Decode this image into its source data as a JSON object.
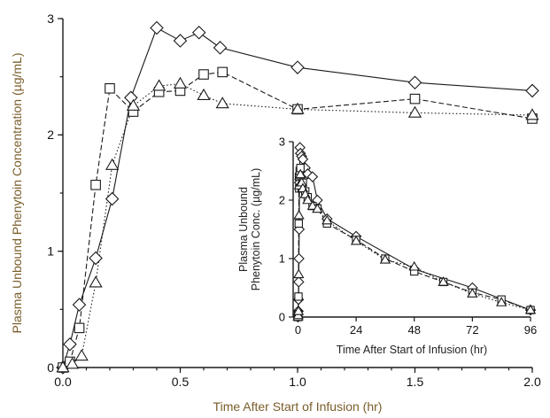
{
  "chart_data": [
    {
      "type": "line",
      "title": "",
      "xlabel": "Time After Start of Infusion (hr)",
      "ylabel": "Plasma Unbound Phenytoin Concentration (µg/mL)",
      "xlim": [
        0,
        2.0
      ],
      "ylim": [
        0,
        3
      ],
      "xticks": [
        "0.0",
        "0.5",
        "1.0",
        "1.5",
        "2.0"
      ],
      "yticks": [
        "0",
        "1",
        "2",
        "3"
      ],
      "grid": false,
      "series": [
        {
          "marker": "diamond",
          "dash": "solid",
          "x": [
            0.0,
            0.03,
            0.07,
            0.14,
            0.21,
            0.29,
            0.4,
            0.5,
            0.58,
            0.67,
            1.0,
            1.5,
            2.0
          ],
          "y": [
            0.0,
            0.2,
            0.54,
            0.94,
            1.45,
            2.32,
            2.92,
            2.81,
            2.88,
            2.75,
            2.58,
            2.45,
            2.38
          ]
        },
        {
          "marker": "square",
          "dash": "dashed",
          "x": [
            0.0,
            0.03,
            0.07,
            0.14,
            0.2,
            0.3,
            0.41,
            0.5,
            0.6,
            0.68,
            1.0,
            1.5,
            2.0
          ],
          "y": [
            0.0,
            0.05,
            0.34,
            1.57,
            2.4,
            2.2,
            2.37,
            2.38,
            2.52,
            2.54,
            2.22,
            2.31,
            2.14
          ]
        },
        {
          "marker": "triangle",
          "dash": "dotted",
          "x": [
            0.0,
            0.04,
            0.08,
            0.14,
            0.21,
            0.3,
            0.41,
            0.5,
            0.6,
            0.68,
            1.0,
            1.5,
            2.0
          ],
          "y": [
            0.0,
            0.03,
            0.1,
            0.73,
            1.74,
            2.25,
            2.42,
            2.44,
            2.34,
            2.27,
            2.22,
            2.19,
            2.17
          ]
        }
      ]
    },
    {
      "type": "line",
      "title": "",
      "xlabel": "Time After Start of Infusion (hr)",
      "ylabel": [
        "Plasma Unbound",
        "Phenytoin Conc. (µg/mL)"
      ],
      "xlim": [
        -2,
        96
      ],
      "ylim": [
        0,
        3
      ],
      "xticks": [
        "0",
        "24",
        "48",
        "72",
        "96"
      ],
      "yticks": [
        "0",
        "1",
        "2",
        "3"
      ],
      "grid": false,
      "series": [
        {
          "marker": "diamond",
          "dash": "solid",
          "x": [
            0,
            0.1,
            0.2,
            0.3,
            0.4,
            0.5,
            0.6,
            0.8,
            1,
            1.5,
            2,
            3,
            4,
            6,
            8,
            12,
            24,
            48,
            72,
            96
          ],
          "y": [
            0,
            0.1,
            0.3,
            0.6,
            1.0,
            1.5,
            2.3,
            2.9,
            2.8,
            2.75,
            2.7,
            2.55,
            2.45,
            2.4,
            2.0,
            1.68,
            1.38,
            0.82,
            0.5,
            0.12
          ]
        },
        {
          "marker": "square",
          "dash": "dashed",
          "x": [
            0,
            0.1,
            0.2,
            0.3,
            0.4,
            0.5,
            0.7,
            1,
            1.5,
            2,
            3,
            4,
            6,
            8,
            12,
            24,
            36,
            48,
            60,
            72,
            84,
            96
          ],
          "y": [
            0,
            0.05,
            0.35,
            1.6,
            2.4,
            2.2,
            2.5,
            2.55,
            2.2,
            2.3,
            2.15,
            2.05,
            1.9,
            1.86,
            1.6,
            1.32,
            1.0,
            0.78,
            0.6,
            0.42,
            0.3,
            0.12
          ]
        },
        {
          "marker": "triangle",
          "dash": "dotted",
          "x": [
            0,
            0.1,
            0.2,
            0.3,
            0.4,
            0.5,
            0.7,
            1,
            1.5,
            2,
            3,
            4,
            6,
            8,
            12,
            24,
            36,
            48,
            60,
            72,
            84,
            96
          ],
          "y": [
            0,
            0.03,
            0.1,
            0.73,
            1.74,
            2.25,
            2.42,
            2.44,
            2.3,
            2.2,
            2.1,
            2.0,
            1.9,
            1.85,
            1.65,
            1.3,
            0.98,
            0.86,
            0.6,
            0.4,
            0.25,
            0.12
          ]
        }
      ]
    }
  ]
}
